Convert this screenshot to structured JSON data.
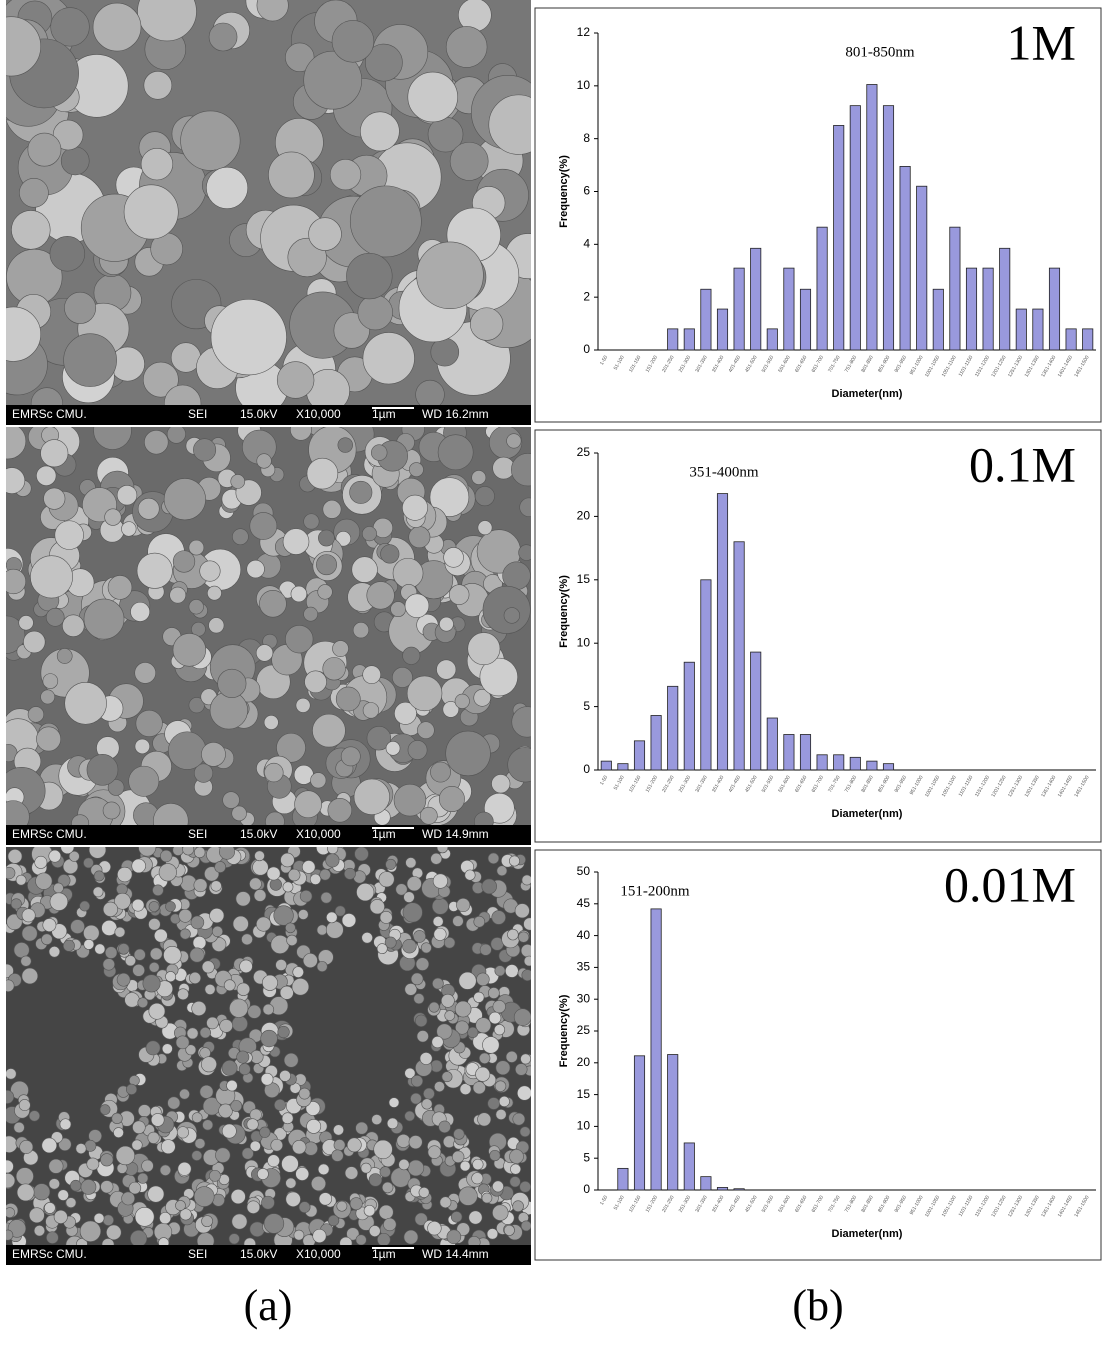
{
  "chart_data": [
    {
      "type": "bar",
      "annotation": "801-850nm",
      "label": "1M",
      "y_label": "Frequency(%)",
      "x_label": "Diameter(nm)",
      "color": "#9999dd",
      "categories": [
        "1-50",
        "51-100",
        "101-150",
        "151-200",
        "201-250",
        "251-300",
        "301-350",
        "351-400",
        "401-450",
        "451-500",
        "501-550",
        "551-600",
        "601-650",
        "651-700",
        "701-750",
        "751-800",
        "801-850",
        "851-900",
        "901-950",
        "951-1000",
        "1001-1050",
        "1051-1100",
        "1101-1150",
        "1151-1200",
        "1201-1250",
        "1251-1300",
        "1301-1350",
        "1351-1400",
        "1401-1450",
        "1451-1500"
      ],
      "values": [
        0,
        0,
        0,
        0,
        0.8,
        0.8,
        2.3,
        1.55,
        3.1,
        3.85,
        0.8,
        3.1,
        2.3,
        4.65,
        8.5,
        9.25,
        10.05,
        9.25,
        6.95,
        6.2,
        2.3,
        4.65,
        3.1,
        3.1,
        3.85,
        1.55,
        1.55,
        3.1,
        0.8,
        0.8
      ],
      "ylim": [
        0,
        12
      ],
      "yticks": [
        0,
        2,
        4,
        6,
        8,
        10,
        12
      ]
    },
    {
      "type": "bar",
      "annotation": "351-400nm",
      "label": "0.1M",
      "y_label": "Frequency(%)",
      "x_label": "Diameter(nm)",
      "color": "#9999dd",
      "categories": [
        "1-50",
        "51-100",
        "101-150",
        "151-200",
        "201-250",
        "251-300",
        "301-350",
        "351-400",
        "401-450",
        "451-500",
        "501-550",
        "551-600",
        "601-650",
        "651-700",
        "701-750",
        "751-800",
        "801-850",
        "851-900",
        "901-950",
        "951-1000",
        "1001-1050",
        "1051-1100",
        "1101-1150",
        "1151-1200",
        "1201-1250",
        "1251-1300",
        "1301-1350",
        "1351-1400",
        "1401-1450",
        "1451-1500"
      ],
      "values": [
        0.7,
        0.5,
        2.3,
        4.3,
        6.6,
        8.5,
        15,
        21.8,
        18,
        9.3,
        4.1,
        2.8,
        2.8,
        1.2,
        1.2,
        1.0,
        0.7,
        0.5,
        0,
        0,
        0,
        0,
        0,
        0,
        0,
        0,
        0,
        0,
        0,
        0
      ],
      "ylim": [
        0,
        25
      ],
      "yticks": [
        0,
        5,
        10,
        15,
        20,
        25
      ]
    },
    {
      "type": "bar",
      "annotation": "151-200nm",
      "label": "0.01M",
      "y_label": "Frequency(%)",
      "x_label": "Diameter(nm)",
      "color": "#9999dd",
      "categories": [
        "1-50",
        "51-100",
        "101-150",
        "151-200",
        "201-250",
        "251-300",
        "301-350",
        "351-400",
        "401-450",
        "451-500",
        "501-550",
        "551-600",
        "601-650",
        "651-700",
        "701-750",
        "751-800",
        "801-850",
        "851-900",
        "901-950",
        "951-1000",
        "1001-1050",
        "1051-1100",
        "1101-1150",
        "1151-1200",
        "1201-1250",
        "1251-1300",
        "1301-1350",
        "1351-1400",
        "1401-1450",
        "1451-1500"
      ],
      "values": [
        0,
        3.4,
        21.1,
        44.2,
        21.3,
        7.4,
        2.1,
        0.4,
        0.2,
        0,
        0,
        0,
        0,
        0,
        0,
        0,
        0,
        0,
        0,
        0,
        0,
        0,
        0,
        0,
        0,
        0,
        0,
        0,
        0,
        0
      ],
      "ylim": [
        0,
        50
      ],
      "yticks": [
        0,
        5,
        10,
        15,
        20,
        25,
        30,
        35,
        40,
        45,
        50
      ]
    }
  ],
  "sem_images": [
    {
      "footer": [
        "EMRSc CMU.",
        "SEI",
        "15.0kV",
        "X10,000",
        "1µm",
        "WD 16.2mm"
      ]
    },
    {
      "footer": [
        "EMRSc CMU.",
        "SEI",
        "15.0kV",
        "X10,000",
        "1µm",
        "WD 14.9mm"
      ]
    },
    {
      "footer": [
        "EMRSc CMU.",
        "SEI",
        "15.0kV",
        "X10,000",
        "1µm",
        "WD 14.4mm"
      ]
    }
  ],
  "panel_labels": [
    "(a)",
    "(b)"
  ]
}
